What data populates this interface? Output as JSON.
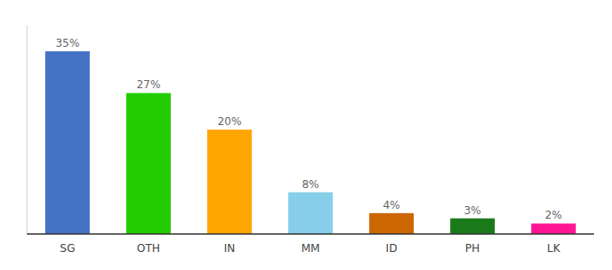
{
  "chart_data": {
    "type": "bar",
    "categories": [
      "SG",
      "OTH",
      "IN",
      "MM",
      "ID",
      "PH",
      "LK"
    ],
    "values": [
      35,
      27,
      20,
      8,
      4,
      3,
      2
    ],
    "value_labels": [
      "35%",
      "27%",
      "20%",
      "8%",
      "4%",
      "3%",
      "2%"
    ],
    "colors": [
      "#4472C4",
      "#22CC00",
      "#FFA500",
      "#87CEEB",
      "#CC6600",
      "#1A7A1A",
      "#FF1493"
    ],
    "ylim": [
      0,
      40
    ],
    "data_labels": true,
    "tick_labels": "x",
    "grid": false
  }
}
